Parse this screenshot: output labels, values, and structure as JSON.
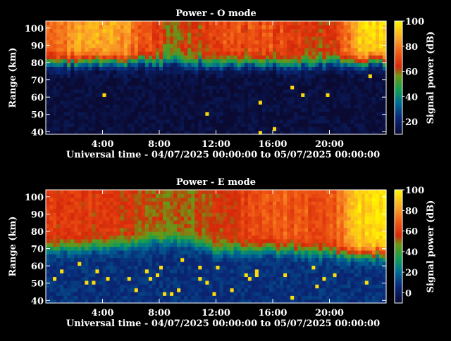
{
  "chart_data": [
    {
      "type": "heatmap",
      "title": "Power - O mode",
      "xlabel": "Universal time - 04/07/2025 00:00:00 to 05/07/2025 00:00:00",
      "ylabel": "Range (km)",
      "colorbar_label": "Signal power (dB)",
      "x_tick_labels": [
        "4:00",
        "8:00",
        "12:00",
        "16:00",
        "20:00"
      ],
      "x_tick_hours": [
        4,
        8,
        12,
        16,
        20
      ],
      "xlim_hours": [
        0,
        24
      ],
      "y_ticks": [
        40,
        50,
        60,
        70,
        80,
        90,
        100
      ],
      "ylim": [
        38.5,
        104
      ],
      "colorbar_ticks": [
        20,
        40,
        60,
        80,
        100
      ],
      "colorbar_range": [
        10,
        100
      ],
      "colormap": "rainbow (navy-blue-cyan-green-red-orange-yellow)",
      "pattern": {
        "noise_floor_db": 12,
        "gradient_center_km": [
          [
            0,
            80
          ],
          [
            6,
            81
          ],
          [
            10,
            80
          ],
          [
            14,
            80
          ],
          [
            18,
            79
          ],
          [
            22,
            81
          ],
          [
            24,
            81
          ]
        ],
        "peak_db": [
          [
            0,
            78
          ],
          [
            3,
            88
          ],
          [
            6,
            82
          ],
          [
            9,
            60
          ],
          [
            12,
            70
          ],
          [
            16,
            72
          ],
          [
            20,
            66
          ],
          [
            22.5,
            95
          ],
          [
            24,
            95
          ]
        ]
      }
    },
    {
      "type": "heatmap",
      "title": "Power - E mode",
      "xlabel": "Universal time - 04/07/2025 00:00:00 to 05/07/2025 00:00:00",
      "ylabel": "Range (km)",
      "colorbar_label": "Signal power (dB)",
      "x_tick_labels": [
        "4:00",
        "8:00",
        "12:00",
        "16:00",
        "20:00"
      ],
      "x_tick_hours": [
        4,
        8,
        12,
        16,
        20
      ],
      "xlim_hours": [
        0,
        24
      ],
      "y_ticks": [
        40,
        50,
        60,
        70,
        80,
        90,
        100
      ],
      "ylim": [
        38.5,
        104
      ],
      "colorbar_ticks": [
        0,
        20,
        40,
        60,
        80,
        100
      ],
      "colorbar_range": [
        -10,
        100
      ],
      "colormap": "rainbow (navy-blue-cyan-green-red-orange-yellow)",
      "pattern": {
        "noise_floor_db": 8,
        "gradient_center_km": [
          [
            0,
            70
          ],
          [
            6,
            73
          ],
          [
            9,
            76
          ],
          [
            12,
            70
          ],
          [
            16,
            70
          ],
          [
            20,
            68
          ],
          [
            24,
            67
          ]
        ],
        "peak_db": [
          [
            0,
            62
          ],
          [
            4,
            58
          ],
          [
            8,
            50
          ],
          [
            10,
            52
          ],
          [
            14,
            62
          ],
          [
            17,
            68
          ],
          [
            20,
            64
          ],
          [
            22.5,
            96
          ],
          [
            24,
            96
          ]
        ]
      }
    }
  ]
}
